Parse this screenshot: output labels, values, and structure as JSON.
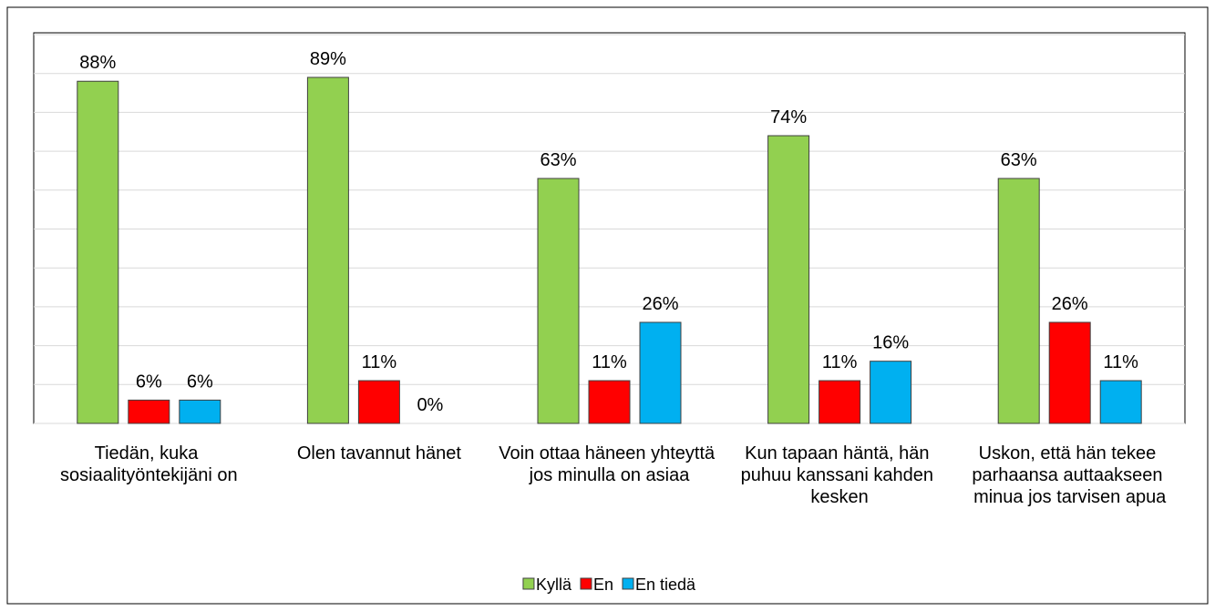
{
  "chart_data": {
    "type": "bar",
    "categories": [
      "Tiedän, kuka sosiaalityöntekijäni on",
      "Olen tavannut hänet",
      "Voin ottaa häneen yhteyttä jos minulla on asiaa",
      "Kun tapaan häntä, hän puhuu kanssani kahden kesken",
      "Uskon, että hän tekee parhaansa auttaakseen minua jos tarvisen apua"
    ],
    "series": [
      {
        "name": "Kyllä",
        "color": "#92d050",
        "values": [
          88,
          89,
          63,
          74,
          63
        ],
        "value_labels": [
          "88%",
          "89%",
          "63%",
          "74%",
          "63%"
        ]
      },
      {
        "name": "En",
        "color": "#ff0000",
        "values": [
          6,
          11,
          11,
          11,
          26
        ],
        "value_labels": [
          "6%",
          "11%",
          "11%",
          "11%",
          "26%"
        ]
      },
      {
        "name": "En tiedä",
        "color": "#00b0f0",
        "values": [
          6,
          0,
          26,
          16,
          11
        ],
        "value_labels": [
          "6%",
          "0%",
          "26%",
          "16%",
          "11%"
        ]
      }
    ],
    "ylim": [
      0,
      100
    ],
    "yticks": [
      0,
      10,
      20,
      30,
      40,
      50,
      60,
      70,
      80,
      90,
      100
    ],
    "grid": true,
    "legend": "bottom"
  }
}
